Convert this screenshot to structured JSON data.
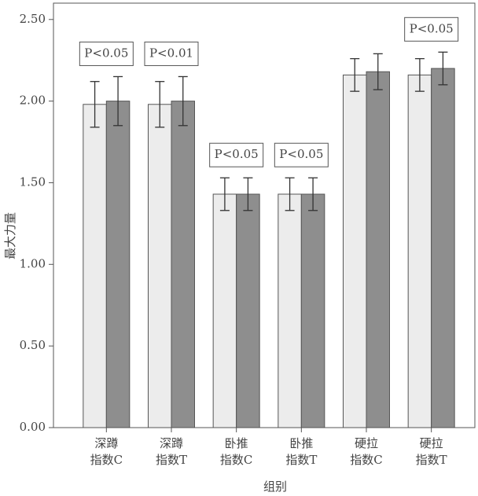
{
  "chart_data": {
    "type": "bar",
    "x_label": "组别",
    "y_label": "最大力量",
    "categories": [
      [
        "深蹲",
        "指数C"
      ],
      [
        "深蹲",
        "指数T"
      ],
      [
        "卧推",
        "指数C"
      ],
      [
        "卧推",
        "指数T"
      ],
      [
        "硬拉",
        "指数C"
      ],
      [
        "硬拉",
        "指数T"
      ]
    ],
    "series": [
      {
        "color": "#ececec",
        "values": [
          1.98,
          1.98,
          1.43,
          1.43,
          2.16,
          2.16
        ],
        "errors": [
          0.14,
          0.14,
          0.1,
          0.1,
          0.1,
          0.1
        ]
      },
      {
        "color": "#8e8e8e",
        "values": [
          2.0,
          2.0,
          1.43,
          1.43,
          2.18,
          2.2
        ],
        "errors": [
          0.15,
          0.15,
          0.1,
          0.1,
          0.11,
          0.1
        ]
      }
    ],
    "annotations": [
      {
        "category": 0,
        "text": "P<0.05"
      },
      {
        "category": 1,
        "text": "P<0.01"
      },
      {
        "category": 2,
        "text": "P<0.05"
      },
      {
        "category": 3,
        "text": "P<0.05"
      },
      {
        "category": 5,
        "text": "P<0.05"
      }
    ],
    "ylim": [
      0,
      2.6
    ],
    "yticks": [
      {
        "value": 0,
        "label": "0.00"
      },
      {
        "value": 0.5,
        "label": "0.50"
      },
      {
        "value": 1,
        "label": "1.00"
      },
      {
        "value": 1.5,
        "label": "1.50"
      },
      {
        "value": 2,
        "label": "2.00"
      },
      {
        "value": 2.5,
        "label": "2.50"
      }
    ]
  }
}
